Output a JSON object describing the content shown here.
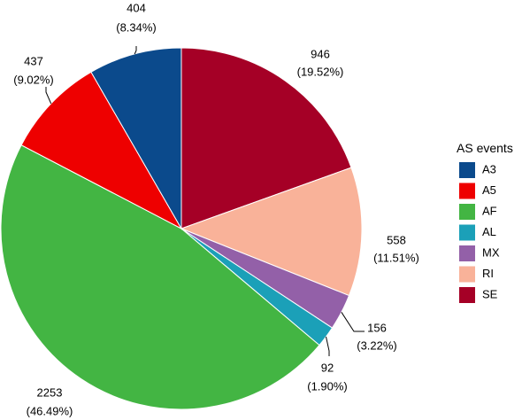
{
  "chart_data": {
    "type": "pie",
    "legend_title": "AS events",
    "legend_position": "right",
    "slices": [
      {
        "name": "SE",
        "value": 946,
        "percent": "19.52%",
        "color": "#A50026"
      },
      {
        "name": "RI",
        "value": 558,
        "percent": "11.51%",
        "color": "#F9B299"
      },
      {
        "name": "MX",
        "value": 156,
        "percent": "3.22%",
        "color": "#9360A8"
      },
      {
        "name": "AL",
        "value": 92,
        "percent": "1.90%",
        "color": "#1BA0B8"
      },
      {
        "name": "AF",
        "value": 2253,
        "percent": "46.49%",
        "color": "#43B543"
      },
      {
        "name": "A5",
        "value": 437,
        "percent": "9.02%",
        "color": "#EE0000"
      },
      {
        "name": "A3",
        "value": 404,
        "percent": "8.34%",
        "color": "#0B4A8C"
      }
    ],
    "legend_order": [
      "A3",
      "A5",
      "AF",
      "AL",
      "MX",
      "RI",
      "SE"
    ]
  }
}
